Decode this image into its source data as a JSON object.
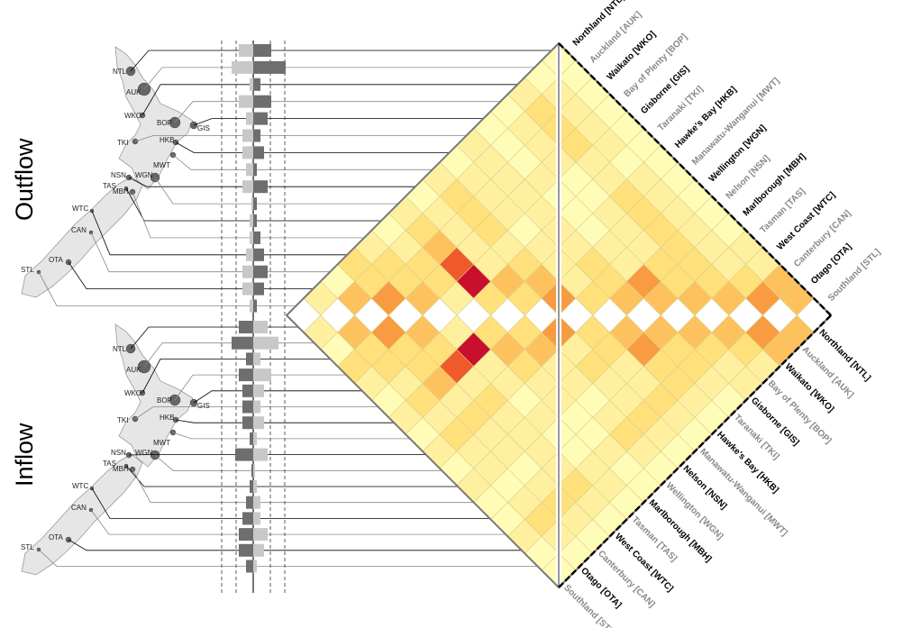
{
  "panels": {
    "outflow_label": "Outflow",
    "inflow_label": "Inflow"
  },
  "colors": {
    "odd_label": "#000000",
    "even_label": "#888888",
    "light_bar": "#c8c8c8",
    "dark_bar": "#6e6e6e",
    "scale": [
      "#fffcb8",
      "#fff0a0",
      "#ffe07a",
      "#fdc25e",
      "#f99b40",
      "#ee5a2a",
      "#c8102e"
    ]
  },
  "map_codes": {
    "outflow": [
      "NTL",
      "AUK",
      "WKO",
      "BOP",
      "GIS",
      "TKI",
      "HKB",
      "MWT",
      "NSN",
      "WGN",
      "TAS",
      "MBH",
      "WTC",
      "CAN",
      "OTA",
      "STL"
    ],
    "inflow": [
      "NTL",
      "AUK",
      "WKO",
      "BOP",
      "GIS",
      "TKI",
      "HKB",
      "MWT",
      "NSN",
      "WGN",
      "TAS",
      "MBH",
      "WTC",
      "CAN",
      "OTA",
      "STL"
    ]
  },
  "chart_data": {
    "type": "heatmap",
    "regions": [
      "Northland [NTL]",
      "Auckland [AUK]",
      "Waikato [WKO]",
      "Bay of Plenty [BOP]",
      "Gisborne [GIS]",
      "Taranaki [TKI]",
      "Hawke's Bay [HKB]",
      "Manawatu-Wanganui [MWT]",
      "Wellington [WGN]",
      "Nelson [NSN]",
      "Marlborough [MBH]",
      "Tasman [TAS]",
      "West Coast [WTC]",
      "Canterbury [CAN]",
      "Otago [OTA]",
      "Southland [STL]"
    ],
    "top_labels": [
      "Northland [NTL]",
      "Auckland [AUK]",
      "Waikato [WKO]",
      "Bay of Plenty [BOP]",
      "Gisborne [GIS]",
      "Taranaki [TKI]",
      "Hawke's Bay [HKB]",
      "Manawatu-Wanganui [MWT]",
      "Wellington [WGN]",
      "Nelson [NSN]",
      "Marlborough [MBH]",
      "Tasman [TAS]",
      "West Coast [WTC]",
      "Canterbury [CAN]",
      "Otago [OTA]",
      "Southland [STL]"
    ],
    "bottom_labels": [
      "Northland [NTL]",
      "Auckland [AUK]",
      "Waikato [WKO]",
      "Bay of Plenty [BOP]",
      "Gisborne [GIS]",
      "Taranaki [TKI]",
      "Hawke's Bay [HKB]",
      "Manawatu-Wanganui [MWT]",
      "Nelson [NSN]",
      "Wellington [WGN]",
      "Marlborough [MBH]",
      "Tasman [TAS]",
      "West Coast [WTC]",
      "Canterbury [CAN]",
      "Otago [OTA]",
      "Southland [STL]"
    ],
    "outflow_bars": [
      {
        "light": 0.4,
        "dark": 0.5
      },
      {
        "light": 0.6,
        "dark": 0.9
      },
      {
        "light": 0.1,
        "dark": 0.2
      },
      {
        "light": 0.4,
        "dark": 0.5
      },
      {
        "light": 0.2,
        "dark": 0.4
      },
      {
        "light": 0.3,
        "dark": 0.2
      },
      {
        "light": 0.3,
        "dark": 0.3
      },
      {
        "light": 0.2,
        "dark": 0.1
      },
      {
        "light": 0.3,
        "dark": 0.4
      },
      {
        "light": 0.05,
        "dark": 0.1
      },
      {
        "light": 0.1,
        "dark": 0.1
      },
      {
        "light": 0.1,
        "dark": 0.2
      },
      {
        "light": 0.2,
        "dark": 0.3
      },
      {
        "light": 0.3,
        "dark": 0.4
      },
      {
        "light": 0.3,
        "dark": 0.3
      },
      {
        "light": 0.1,
        "dark": 0.1
      }
    ],
    "inflow_bars": [
      {
        "dark": 0.4,
        "light": 0.4
      },
      {
        "dark": 0.6,
        "light": 0.7
      },
      {
        "dark": 0.2,
        "light": 0.2
      },
      {
        "dark": 0.4,
        "light": 0.5
      },
      {
        "dark": 0.3,
        "light": 0.3
      },
      {
        "dark": 0.3,
        "light": 0.2
      },
      {
        "dark": 0.3,
        "light": 0.3
      },
      {
        "dark": 0.1,
        "light": 0.1
      },
      {
        "dark": 0.5,
        "light": 0.4
      },
      {
        "dark": 0.05,
        "light": 0.05
      },
      {
        "dark": 0.1,
        "light": 0.1
      },
      {
        "dark": 0.2,
        "light": 0.2
      },
      {
        "dark": 0.3,
        "light": 0.2
      },
      {
        "dark": 0.4,
        "light": 0.4
      },
      {
        "dark": 0.4,
        "light": 0.3
      },
      {
        "dark": 0.2,
        "light": 0.1
      }
    ],
    "matrix": [
      [
        0,
        1,
        0,
        2,
        1,
        0,
        1,
        0,
        1,
        0,
        1,
        0,
        0,
        1,
        0,
        0
      ],
      [
        1,
        0,
        3,
        2,
        2,
        1,
        2,
        1,
        2,
        1,
        1,
        0,
        1,
        2,
        1,
        0
      ],
      [
        0,
        3,
        0,
        4,
        2,
        2,
        3,
        1,
        2,
        1,
        1,
        0,
        1,
        2,
        1,
        0
      ],
      [
        2,
        2,
        4,
        0,
        3,
        2,
        5,
        1,
        2,
        1,
        1,
        1,
        1,
        2,
        1,
        0
      ],
      [
        1,
        2,
        2,
        3,
        0,
        1,
        6,
        1,
        1,
        0,
        1,
        0,
        0,
        1,
        1,
        0
      ],
      [
        0,
        1,
        2,
        2,
        1,
        0,
        2,
        3,
        2,
        1,
        1,
        0,
        0,
        1,
        0,
        0
      ],
      [
        1,
        2,
        3,
        5,
        6,
        2,
        0,
        2,
        3,
        1,
        1,
        0,
        1,
        2,
        1,
        0
      ],
      [
        0,
        1,
        1,
        1,
        1,
        3,
        2,
        0,
        4,
        1,
        2,
        1,
        1,
        2,
        1,
        0
      ],
      [
        1,
        2,
        2,
        2,
        1,
        2,
        3,
        4,
        0,
        2,
        2,
        1,
        1,
        2,
        1,
        0
      ],
      [
        0,
        1,
        1,
        1,
        0,
        1,
        1,
        1,
        2,
        0,
        3,
        4,
        2,
        2,
        1,
        0
      ],
      [
        1,
        1,
        1,
        1,
        1,
        1,
        1,
        2,
        2,
        3,
        0,
        3,
        2,
        2,
        1,
        0
      ],
      [
        0,
        0,
        0,
        1,
        0,
        0,
        0,
        1,
        1,
        4,
        3,
        0,
        3,
        2,
        1,
        1
      ],
      [
        0,
        1,
        1,
        1,
        0,
        0,
        1,
        1,
        1,
        2,
        2,
        3,
        0,
        3,
        2,
        1
      ],
      [
        1,
        2,
        2,
        2,
        1,
        1,
        2,
        2,
        2,
        2,
        2,
        2,
        3,
        0,
        4,
        3
      ],
      [
        0,
        1,
        1,
        1,
        1,
        0,
        1,
        1,
        1,
        1,
        1,
        1,
        2,
        4,
        0,
        3
      ],
      [
        0,
        0,
        0,
        0,
        0,
        0,
        0,
        0,
        0,
        0,
        0,
        1,
        1,
        3,
        3,
        0
      ]
    ]
  }
}
